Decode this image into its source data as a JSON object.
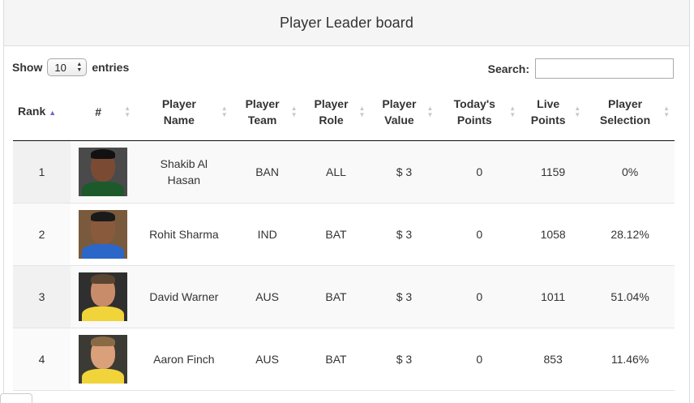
{
  "panel": {
    "title": "Player Leader board"
  },
  "controls": {
    "show_label": "Show",
    "entries_value": "10",
    "entries_label": "entries",
    "search_label": "Search:",
    "search_value": ""
  },
  "table": {
    "headers": {
      "rank": "Rank",
      "num": "#",
      "name": "Player Name",
      "team": "Player Team",
      "role": "Player Role",
      "value": "Player Value",
      "today": "Today's Points",
      "live": "Live Points",
      "selection": "Player Selection"
    },
    "rows": [
      {
        "rank": "1",
        "name": "Shakib Al Hasan",
        "team": "BAN",
        "role": "ALL",
        "value": "$ 3",
        "today": "0",
        "live": "1159",
        "selection": "0%"
      },
      {
        "rank": "2",
        "name": "Rohit Sharma",
        "team": "IND",
        "role": "BAT",
        "value": "$ 3",
        "today": "0",
        "live": "1058",
        "selection": "28.12%"
      },
      {
        "rank": "3",
        "name": "David Warner",
        "team": "AUS",
        "role": "BAT",
        "value": "$ 3",
        "today": "0",
        "live": "1011",
        "selection": "51.04%"
      },
      {
        "rank": "4",
        "name": "Aaron Finch",
        "team": "AUS",
        "role": "BAT",
        "value": "$ 3",
        "today": "0",
        "live": "853",
        "selection": "11.46%"
      }
    ]
  },
  "colors": {
    "sort_active": "#6f66c9",
    "sort_inactive": "#c8c8c8",
    "avatar_bg": [
      "#4a4a4a",
      "#7a5a3c",
      "#2f2f2f",
      "#3c3a35"
    ],
    "skin": [
      "#7b4a33",
      "#8a5a3c",
      "#c98c6a",
      "#d9a07a"
    ],
    "shirt": [
      "#1c5a2c",
      "#2b67c9",
      "#f0d43a",
      "#f0d43a"
    ]
  }
}
